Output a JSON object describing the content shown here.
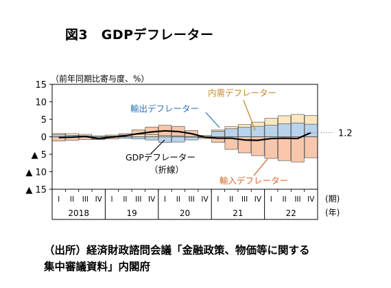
{
  "figure": {
    "title": "図3　GDPデフレーター",
    "source_line1": "（出所）経済財政諮問会議「金融政策、物価等に関する",
    "source_line2": "集中審議資料」内閣府"
  },
  "chart_data": {
    "type": "bar",
    "unit_label": "（前年同期比寄与度、%）",
    "ylim": [
      -15,
      15
    ],
    "yticks": [
      15,
      10,
      5,
      0,
      -5,
      -10,
      -15
    ],
    "ytick_labels": [
      "15",
      "10",
      "5",
      "0",
      "▲ 5",
      "▲ 10",
      "▲ 15"
    ],
    "categories": [
      "I",
      "II",
      "III",
      "IV",
      "I",
      "II",
      "III",
      "IV",
      "I",
      "II",
      "III",
      "IV",
      "I",
      "II",
      "III",
      "IV",
      "I",
      "II",
      "III",
      "IV"
    ],
    "years": [
      "2018",
      "19",
      "20",
      "21",
      "22"
    ],
    "period_label": "(期)",
    "year_label": "(年)",
    "series": [
      {
        "name": "輸出デフレーター",
        "color": "#b9d3ec",
        "values": [
          0.6,
          0.4,
          0.3,
          -0.6,
          0.2,
          -0.4,
          -0.6,
          -0.9,
          -1.6,
          -1.5,
          -0.9,
          -0.2,
          1.6,
          2.3,
          2.7,
          3.0,
          3.3,
          3.7,
          3.9,
          3.6
        ]
      },
      {
        "name": "内需デフレーター",
        "color": "#fbe7bf",
        "values": [
          0.4,
          0.5,
          0.4,
          0.3,
          0.3,
          0.5,
          0.7,
          0.6,
          0.4,
          0.3,
          0.0,
          -0.3,
          0.4,
          0.6,
          0.8,
          1.2,
          2.0,
          2.3,
          2.5,
          2.5
        ]
      },
      {
        "name": "輸入デフレーター",
        "color": "#f8c7ab",
        "values": [
          -1.2,
          -1.0,
          -0.8,
          -0.2,
          -0.6,
          0.4,
          1.3,
          2.2,
          2.9,
          2.7,
          1.8,
          0.4,
          -1.6,
          -3.6,
          -4.6,
          -5.4,
          -6.2,
          -6.8,
          -7.2,
          -6.0
        ]
      },
      {
        "name": "GDPデフレーター",
        "annotation": "GDPデフレーター\n（折線）",
        "color": "#000000",
        "values": [
          -0.2,
          -0.1,
          0.1,
          -0.5,
          -0.1,
          0.3,
          0.9,
          1.4,
          1.7,
          1.5,
          0.9,
          -0.1,
          -0.4,
          -0.4,
          -0.9,
          -1.0,
          -0.5,
          -0.4,
          -0.5,
          1.2
        ]
      }
    ],
    "last_value_label": "1.2",
    "grid": false
  }
}
